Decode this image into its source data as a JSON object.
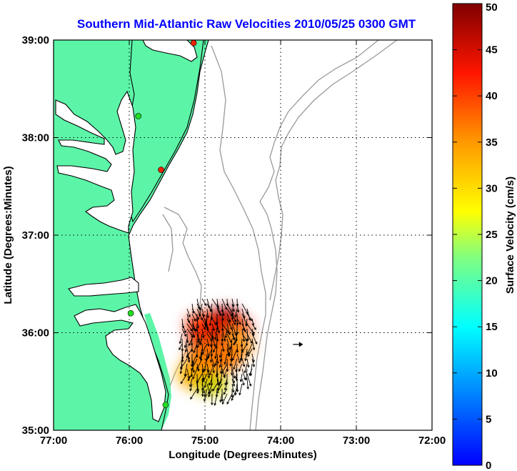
{
  "title": "Southern Mid-Atlantic Raw Velocities 2010/05/25 0300 GMT",
  "colors": {
    "land": "#5cf5a8",
    "water": "#ffffff",
    "coast": "#000000",
    "isobath": "#999999",
    "title": "#0000ff",
    "station_green": "#22dd22",
    "station_red": "#ee2200"
  },
  "map": {
    "xlabel": "Longitude (Degrees:Minutes)",
    "ylabel": "Latitude (Degrees:Minutes)",
    "lon_range": [
      -77,
      -72
    ],
    "lat_range": [
      35,
      39
    ],
    "x_ticks": [
      {
        "value": -77,
        "label": "77:00"
      },
      {
        "value": -76,
        "label": "76:00"
      },
      {
        "value": -75,
        "label": "75:00"
      },
      {
        "value": -74,
        "label": "74:00"
      },
      {
        "value": -73,
        "label": "73:00"
      },
      {
        "value": -72,
        "label": "72:00"
      }
    ],
    "y_ticks": [
      {
        "value": 35,
        "label": "35:00"
      },
      {
        "value": 36,
        "label": "36:00"
      },
      {
        "value": 37,
        "label": "37:00"
      },
      {
        "value": 38,
        "label": "38:00"
      },
      {
        "value": 39,
        "label": "39:00"
      }
    ],
    "grid": "dotted",
    "stations": [
      {
        "lon": -75.15,
        "lat": 38.97,
        "type": "red"
      },
      {
        "lon": -75.88,
        "lat": 38.22,
        "type": "green"
      },
      {
        "lon": -75.58,
        "lat": 37.67,
        "type": "red"
      },
      {
        "lon": -75.98,
        "lat": 36.2,
        "type": "green"
      },
      {
        "lon": -75.52,
        "lat": 35.26,
        "type": "green"
      }
    ],
    "reference_arrow": {
      "lon": -73.78,
      "lat": 35.88,
      "speed_cms": 10,
      "direction_deg": 90
    }
  },
  "colorbar": {
    "label": "Surface Velocity (cm/s)",
    "min": 0,
    "max": 50,
    "ticks": [
      0,
      5,
      10,
      15,
      20,
      25,
      30,
      35,
      40,
      45,
      50
    ],
    "colormap": "jet"
  }
}
